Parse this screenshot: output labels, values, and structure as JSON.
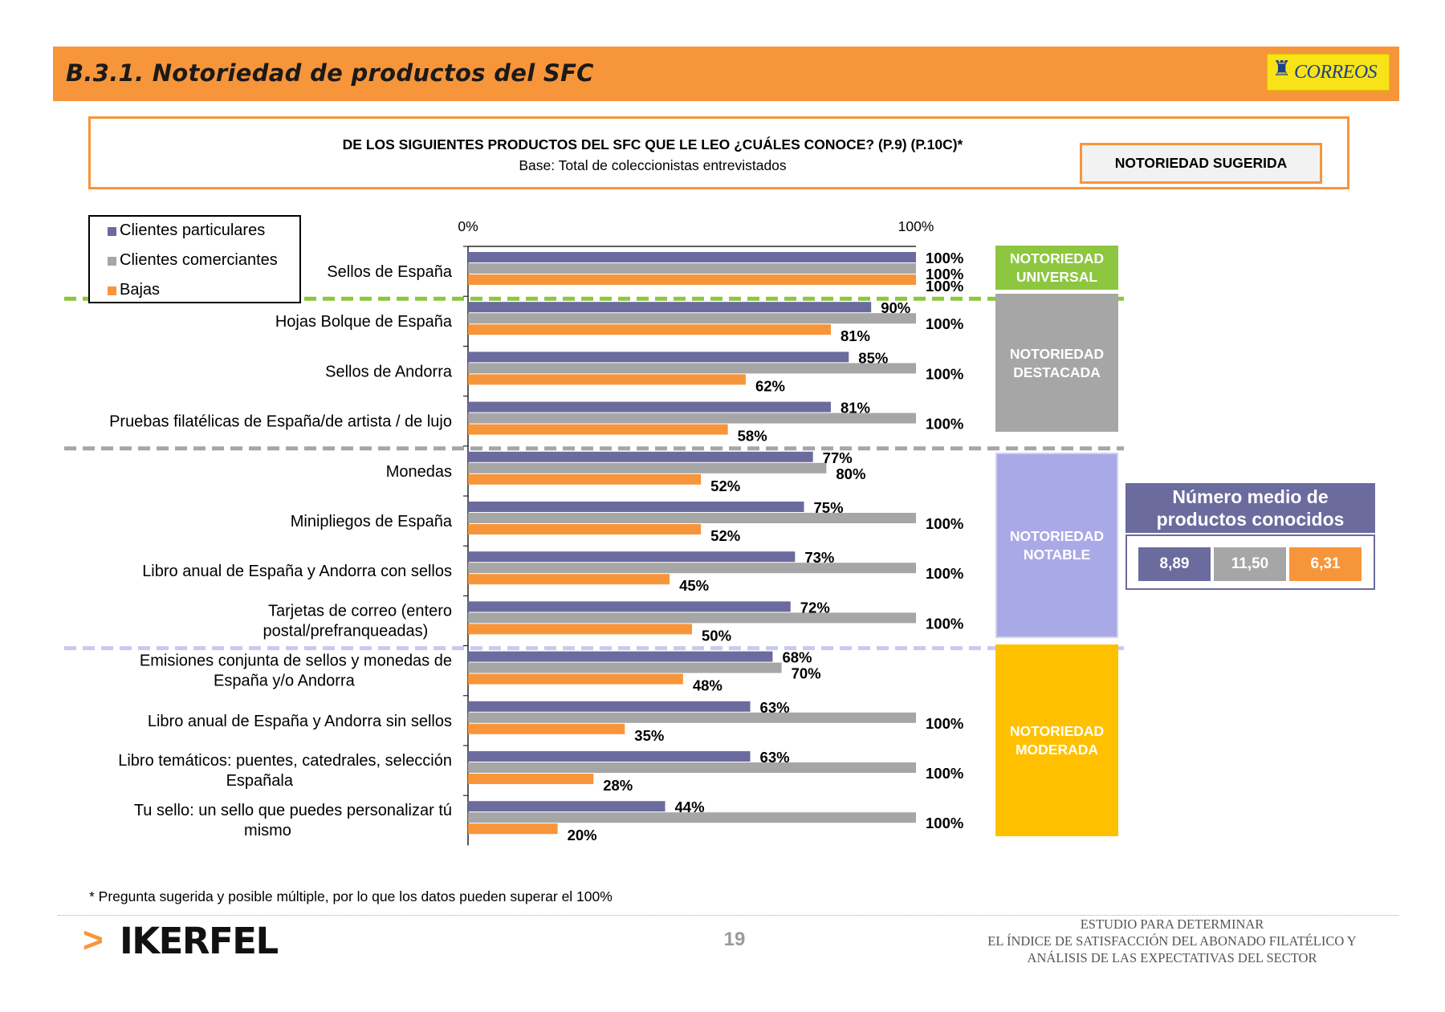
{
  "header": {
    "title": "B.3.1. Notoriedad de productos del SFC",
    "logo_text": "CORREOS"
  },
  "question": {
    "text": "DE LOS SIGUIENTES PRODUCTOS DEL SFC QUE LE LEO ¿CUÁLES CONOCE? (P.9) (P.10C)*",
    "base": "Base: Total de coleccionistas entrevistados",
    "badge": "NOTORIEDAD SUGERIDA"
  },
  "colors": {
    "particulares": "#6B6B9E",
    "comerciantes": "#A6A6A6",
    "bajas": "#F7953A",
    "universal": "#8DC63F",
    "destacada": "#A6A6A6",
    "notable": "#A9A9E8",
    "moderada": "#FFC000"
  },
  "chart_data": {
    "type": "bar",
    "orientation": "horizontal",
    "xlim": [
      0,
      100
    ],
    "x_ticks": [
      "0%",
      "100%"
    ],
    "categories": [
      "Sellos de España",
      "Hojas Bolque de España",
      "Sellos de Andorra",
      "Pruebas filatélicas de España/de artista / de lujo",
      "Monedas",
      "Minipliegos de España",
      "Libro anual de España y Andorra con sellos",
      "Tarjetas de correo (entero postal/prefranqueadas)",
      "Emisiones conjunta de sellos y monedas de España y/o Andorra",
      "Libro anual de España y Andorra sin sellos",
      "Libro temáticos: puentes, catedrales, selección Españala",
      "Tu sello: un sello que puedes personalizar tú mismo"
    ],
    "category_lines": [
      [
        "Sellos de España"
      ],
      [
        "Hojas Bolque de España"
      ],
      [
        "Sellos de Andorra"
      ],
      [
        "Pruebas filatélicas de España/de artista / de lujo"
      ],
      [
        "Monedas"
      ],
      [
        "Minipliegos de España"
      ],
      [
        "Libro anual de España y Andorra con sellos"
      ],
      [
        "Tarjetas de correo (entero",
        "postal/prefranqueadas)"
      ],
      [
        "Emisiones conjunta de sellos y monedas de",
        "España y/o Andorra"
      ],
      [
        "Libro anual de España y Andorra sin sellos"
      ],
      [
        "Libro temáticos: puentes, catedrales, selección",
        "Españala"
      ],
      [
        "Tu sello: un sello que puedes personalizar tú",
        "mismo"
      ]
    ],
    "series": [
      {
        "name": "Clientes particulares",
        "values": [
          100,
          90,
          85,
          81,
          77,
          75,
          73,
          72,
          68,
          63,
          63,
          44
        ]
      },
      {
        "name": "Clientes comerciantes",
        "values": [
          100,
          100,
          100,
          100,
          80,
          100,
          100,
          100,
          70,
          100,
          100,
          100
        ]
      },
      {
        "name": "Bajas",
        "values": [
          100,
          81,
          62,
          58,
          52,
          52,
          45,
          50,
          48,
          35,
          28,
          20
        ]
      }
    ],
    "legend_position": "top-left"
  },
  "zones": [
    {
      "lines": [
        "NOTORIEDAD",
        "UNIVERSAL"
      ]
    },
    {
      "lines": [
        "NOTORIEDAD",
        "DESTACADA"
      ]
    },
    {
      "lines": [
        "NOTORIEDAD",
        "NOTABLE"
      ]
    },
    {
      "lines": [
        "NOTORIEDAD",
        "MODERADA"
      ]
    }
  ],
  "average": {
    "title_lines": [
      "Número medio de",
      "productos conocidos"
    ],
    "values": [
      "8,89",
      "11,50",
      "6,31"
    ]
  },
  "footnote": "* Pregunta sugerida y posible múltiple, por lo que los datos pueden superar el 100%",
  "footer": {
    "brand": "IKERFEL",
    "page": "19",
    "study_lines": [
      "ESTUDIO PARA DETERMINAR",
      "EL ÍNDICE DE SATISFACCIÓN DEL ABONADO FILATÉLICO Y",
      "ANÁLISIS DE LAS EXPECTATIVAS DEL SECTOR"
    ]
  }
}
